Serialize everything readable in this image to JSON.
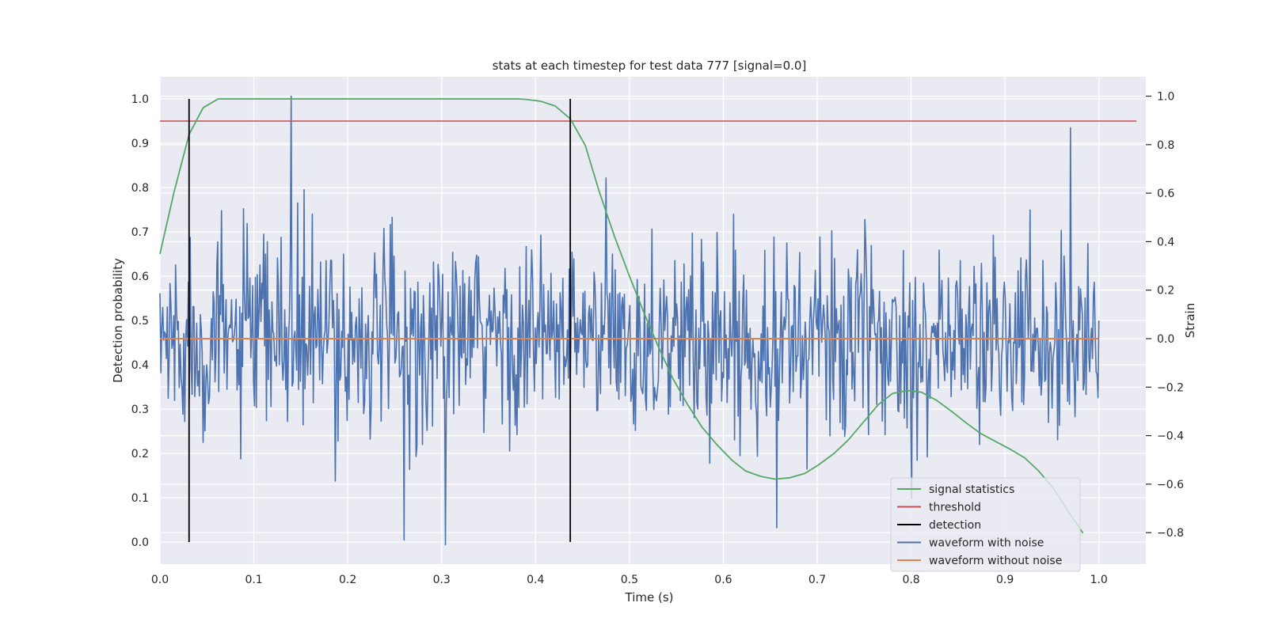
{
  "chart_data": {
    "type": "line",
    "title": "stats at each timestep for test data 777 [signal=0.0]",
    "xlabel": "Time (s)",
    "ylabel_left": "Detection probability",
    "ylabel_right": "Strain",
    "xlim": [
      0.0,
      1.05
    ],
    "ylim_left": [
      -0.05,
      1.05
    ],
    "ylim_right": [
      -0.93,
      1.08
    ],
    "x_ticks": [
      "0.0",
      "0.1",
      "0.2",
      "0.3",
      "0.4",
      "0.5",
      "0.6",
      "0.7",
      "0.8",
      "0.9",
      "1.0"
    ],
    "x_tick_values": [
      0.0,
      0.1,
      0.2,
      0.3,
      0.4,
      0.5,
      0.6,
      0.7,
      0.8,
      0.9,
      1.0
    ],
    "y_left_ticks": [
      "0.0",
      "0.1",
      "0.2",
      "0.3",
      "0.4",
      "0.5",
      "0.6",
      "0.7",
      "0.8",
      "0.9",
      "1.0"
    ],
    "y_left_tick_values": [
      0.0,
      0.1,
      0.2,
      0.3,
      0.4,
      0.5,
      0.6,
      0.7,
      0.8,
      0.9,
      1.0
    ],
    "y_right_ticks": [
      "−0.8",
      "−0.6",
      "−0.4",
      "−0.2",
      "0.0",
      "0.2",
      "0.4",
      "0.6",
      "0.8",
      "1.0"
    ],
    "y_right_tick_values": [
      -0.8,
      -0.6,
      -0.4,
      -0.2,
      0.0,
      0.2,
      0.4,
      0.6,
      0.8,
      1.0
    ],
    "grid": true,
    "legend_position": "bottom-right",
    "series": [
      {
        "name": "signal statistics",
        "axis": "left",
        "color": "#55a868",
        "x": [
          0.0,
          0.015,
          0.031,
          0.046,
          0.062,
          0.08,
          0.1,
          0.2,
          0.3,
          0.38,
          0.39,
          0.405,
          0.421,
          0.437,
          0.453,
          0.468,
          0.484,
          0.5,
          0.515,
          0.531,
          0.546,
          0.562,
          0.577,
          0.593,
          0.609,
          0.624,
          0.64,
          0.655,
          0.671,
          0.687,
          0.702,
          0.718,
          0.733,
          0.749,
          0.765,
          0.78,
          0.796,
          0.811,
          0.827,
          0.843,
          0.858,
          0.874,
          0.889,
          0.905,
          0.921,
          0.936,
          0.952,
          0.967,
          0.983
        ],
        "y": [
          0.65,
          0.79,
          0.92,
          0.98,
          1.0,
          1.0,
          1.0,
          1.0,
          1.0,
          1.0,
          0.999,
          0.995,
          0.984,
          0.955,
          0.895,
          0.79,
          0.69,
          0.6,
          0.52,
          0.44,
          0.37,
          0.31,
          0.26,
          0.22,
          0.185,
          0.16,
          0.148,
          0.142,
          0.145,
          0.155,
          0.175,
          0.2,
          0.23,
          0.27,
          0.31,
          0.335,
          0.342,
          0.338,
          0.32,
          0.295,
          0.27,
          0.245,
          0.228,
          0.21,
          0.19,
          0.16,
          0.12,
          0.07,
          0.02
        ]
      },
      {
        "name": "threshold",
        "axis": "left",
        "color": "#c44e52",
        "x": [
          0.0,
          1.04
        ],
        "y": [
          0.95,
          0.95
        ]
      },
      {
        "name": "detection",
        "axis": "left",
        "color": "#000000",
        "lines": [
          {
            "x": 0.031,
            "y": [
              0.0,
              1.0
            ]
          },
          {
            "x": 0.437,
            "y": [
              0.0,
              1.0
            ]
          }
        ]
      },
      {
        "name": "waveform with noise",
        "axis": "right",
        "color": "#4c72b0",
        "x_start": 0.0,
        "x_end": 1.0,
        "amplitude": 0.2,
        "y_max": 1.0,
        "y_min": -0.85,
        "y_at_x": [
          {
            "x": 0.14,
            "y": 1.0
          },
          {
            "x": 0.97,
            "y": 0.87
          },
          {
            "x": 0.304,
            "y": -0.85
          },
          {
            "x": 0.26,
            "y": -0.83
          },
          {
            "x": 0.657,
            "y": -0.78
          }
        ]
      },
      {
        "name": "waveform without noise",
        "axis": "right",
        "color": "#dd8452",
        "x": [
          0.0,
          1.0
        ],
        "y": [
          0.0,
          0.0
        ]
      }
    ]
  }
}
